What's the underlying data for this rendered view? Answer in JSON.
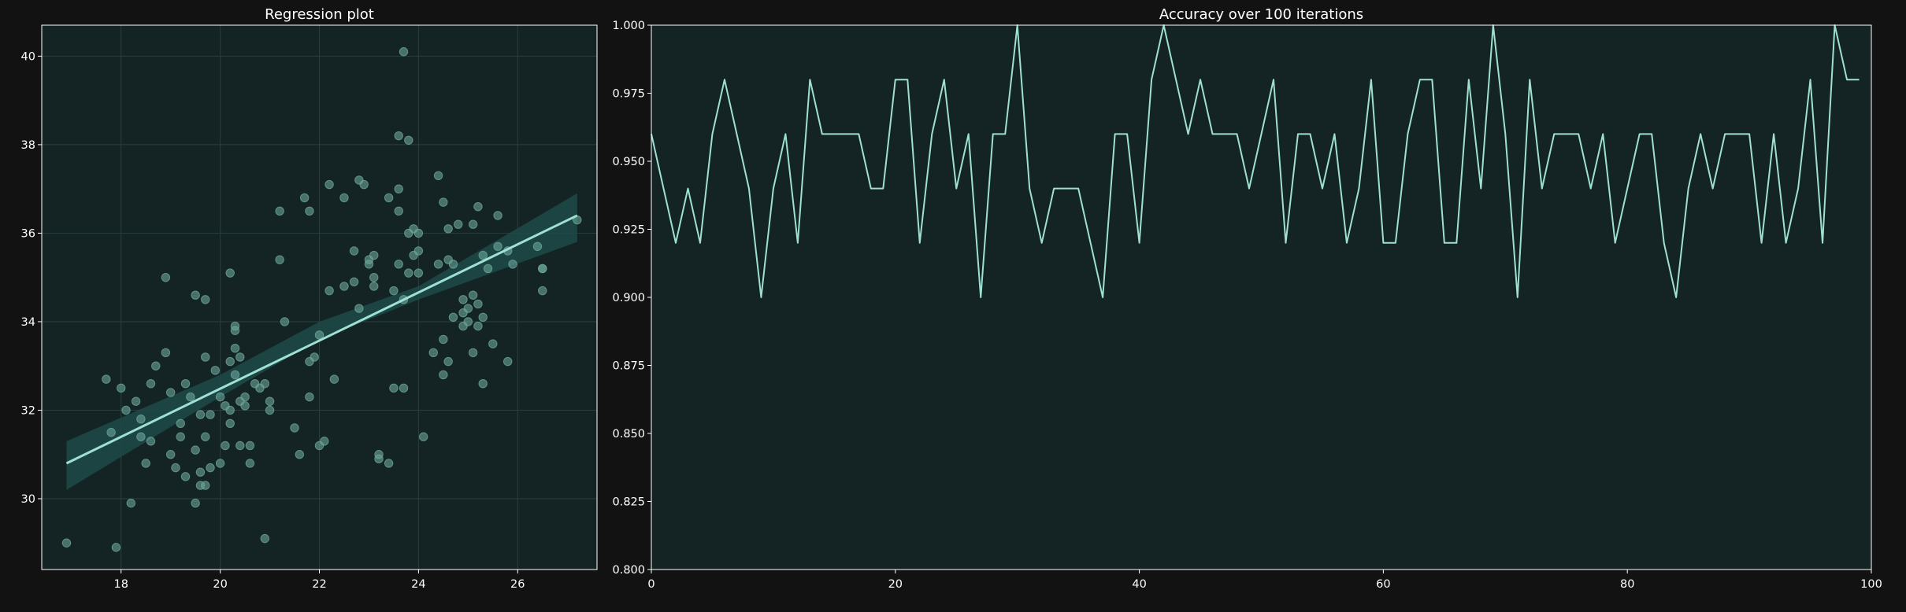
{
  "chart_data": [
    {
      "type": "scatter",
      "title": "Regression plot",
      "xlabel": "",
      "ylabel": "",
      "xlim": [
        16.4,
        27.6
      ],
      "ylim": [
        28.4,
        40.7
      ],
      "xticks": [
        18,
        20,
        22,
        24,
        26
      ],
      "yticks": [
        30,
        32,
        34,
        36,
        38,
        40
      ],
      "grid": true,
      "colors": {
        "background": "#121212",
        "plot_bg": "#142323",
        "point": "#6aa59a",
        "line": "#9fe0d4",
        "band": "#1c4a48",
        "grid": "#27403e",
        "frame": "#ffffff"
      },
      "points": [
        [
          16.9,
          29.0
        ],
        [
          17.7,
          32.7
        ],
        [
          17.8,
          31.5
        ],
        [
          17.9,
          28.9
        ],
        [
          18.0,
          32.5
        ],
        [
          18.1,
          32.0
        ],
        [
          18.2,
          29.9
        ],
        [
          18.3,
          32.2
        ],
        [
          18.4,
          31.4
        ],
        [
          18.4,
          31.8
        ],
        [
          18.5,
          30.8
        ],
        [
          18.6,
          31.3
        ],
        [
          18.6,
          32.6
        ],
        [
          18.7,
          33.0
        ],
        [
          18.9,
          35.0
        ],
        [
          18.9,
          33.3
        ],
        [
          19.0,
          31.0
        ],
        [
          19.0,
          32.4
        ],
        [
          19.1,
          30.7
        ],
        [
          19.2,
          31.4
        ],
        [
          19.2,
          31.7
        ],
        [
          19.3,
          30.5
        ],
        [
          19.3,
          32.6
        ],
        [
          19.4,
          32.3
        ],
        [
          19.5,
          31.1
        ],
        [
          19.5,
          29.9
        ],
        [
          19.5,
          34.6
        ],
        [
          19.6,
          30.3
        ],
        [
          19.6,
          31.9
        ],
        [
          19.6,
          30.6
        ],
        [
          19.7,
          34.5
        ],
        [
          19.7,
          33.2
        ],
        [
          19.7,
          31.4
        ],
        [
          19.7,
          30.3
        ],
        [
          19.8,
          30.7
        ],
        [
          19.8,
          31.9
        ],
        [
          19.9,
          32.9
        ],
        [
          20.0,
          30.8
        ],
        [
          20.0,
          32.3
        ],
        [
          20.1,
          32.1
        ],
        [
          20.1,
          31.2
        ],
        [
          20.2,
          33.1
        ],
        [
          20.2,
          35.1
        ],
        [
          20.2,
          31.7
        ],
        [
          20.2,
          32.0
        ],
        [
          20.3,
          33.4
        ],
        [
          20.3,
          33.8
        ],
        [
          20.3,
          33.9
        ],
        [
          20.3,
          32.8
        ],
        [
          20.4,
          33.2
        ],
        [
          20.4,
          32.2
        ],
        [
          20.4,
          31.2
        ],
        [
          20.5,
          32.3
        ],
        [
          20.5,
          32.1
        ],
        [
          20.6,
          31.2
        ],
        [
          20.6,
          30.8
        ],
        [
          20.7,
          32.6
        ],
        [
          20.8,
          32.5
        ],
        [
          20.9,
          29.1
        ],
        [
          20.9,
          32.6
        ],
        [
          21.0,
          32.2
        ],
        [
          21.0,
          32.0
        ],
        [
          21.2,
          35.4
        ],
        [
          21.2,
          36.5
        ],
        [
          21.3,
          34.0
        ],
        [
          21.5,
          31.6
        ],
        [
          21.6,
          31.0
        ],
        [
          21.7,
          36.8
        ],
        [
          21.8,
          36.5
        ],
        [
          21.8,
          33.1
        ],
        [
          21.8,
          32.3
        ],
        [
          21.9,
          33.2
        ],
        [
          22.0,
          31.2
        ],
        [
          22.0,
          33.7
        ],
        [
          22.1,
          31.3
        ],
        [
          22.2,
          34.7
        ],
        [
          22.2,
          37.1
        ],
        [
          22.3,
          32.7
        ],
        [
          22.5,
          34.8
        ],
        [
          22.5,
          36.8
        ],
        [
          22.7,
          35.6
        ],
        [
          22.7,
          34.9
        ],
        [
          22.8,
          37.2
        ],
        [
          22.8,
          34.3
        ],
        [
          22.9,
          37.1
        ],
        [
          23.0,
          35.3
        ],
        [
          23.0,
          35.4
        ],
        [
          23.1,
          35.0
        ],
        [
          23.1,
          34.8
        ],
        [
          23.1,
          35.5
        ],
        [
          23.2,
          30.9
        ],
        [
          23.2,
          31.0
        ],
        [
          23.4,
          36.8
        ],
        [
          23.4,
          30.8
        ],
        [
          23.5,
          34.7
        ],
        [
          23.5,
          32.5
        ],
        [
          23.6,
          35.3
        ],
        [
          23.6,
          37.0
        ],
        [
          23.6,
          36.5
        ],
        [
          23.6,
          38.2
        ],
        [
          23.7,
          34.5
        ],
        [
          23.7,
          32.5
        ],
        [
          23.7,
          40.1
        ],
        [
          23.8,
          38.1
        ],
        [
          23.8,
          35.1
        ],
        [
          23.8,
          36.0
        ],
        [
          23.9,
          36.1
        ],
        [
          23.9,
          35.5
        ],
        [
          24.0,
          36.0
        ],
        [
          24.0,
          35.1
        ],
        [
          24.0,
          35.6
        ],
        [
          24.1,
          31.4
        ],
        [
          24.3,
          33.3
        ],
        [
          24.4,
          37.3
        ],
        [
          24.4,
          35.3
        ],
        [
          24.5,
          36.7
        ],
        [
          24.5,
          33.6
        ],
        [
          24.5,
          32.8
        ],
        [
          24.6,
          33.1
        ],
        [
          24.6,
          36.1
        ],
        [
          24.6,
          35.4
        ],
        [
          24.7,
          35.3
        ],
        [
          24.7,
          34.1
        ],
        [
          24.8,
          36.2
        ],
        [
          24.9,
          34.2
        ],
        [
          24.9,
          33.9
        ],
        [
          24.9,
          34.5
        ],
        [
          25.0,
          34.3
        ],
        [
          25.0,
          34.0
        ],
        [
          25.1,
          36.2
        ],
        [
          25.1,
          33.3
        ],
        [
          25.1,
          34.6
        ],
        [
          25.2,
          33.9
        ],
        [
          25.2,
          34.4
        ],
        [
          25.2,
          36.6
        ],
        [
          25.3,
          32.6
        ],
        [
          25.3,
          35.5
        ],
        [
          25.3,
          34.1
        ],
        [
          25.4,
          35.2
        ],
        [
          25.5,
          33.5
        ],
        [
          25.6,
          36.4
        ],
        [
          25.6,
          35.7
        ],
        [
          25.8,
          35.6
        ],
        [
          25.8,
          33.1
        ],
        [
          25.9,
          35.3
        ],
        [
          26.4,
          35.7
        ],
        [
          26.5,
          35.2
        ],
        [
          26.5,
          35.2
        ],
        [
          26.5,
          34.7
        ],
        [
          27.2,
          36.3
        ]
      ],
      "regression": {
        "x0": 16.9,
        "y0": 30.8,
        "x1": 27.2,
        "y1": 36.4
      },
      "confidence_band": [
        {
          "x": 16.9,
          "lo": 30.2,
          "hi": 31.3
        },
        {
          "x": 20.0,
          "lo": 32.3,
          "hi": 32.8
        },
        {
          "x": 22.0,
          "lo": 33.6,
          "hi": 34.0
        },
        {
          "x": 24.0,
          "lo": 34.5,
          "hi": 34.8
        },
        {
          "x": 27.2,
          "lo": 35.8,
          "hi": 36.9
        }
      ]
    },
    {
      "type": "line",
      "title": "Accuracy over 100 iterations",
      "xlabel": "",
      "ylabel": "",
      "xlim": [
        0,
        100
      ],
      "ylim": [
        0.8,
        1.0
      ],
      "xticks": [
        0,
        20,
        40,
        60,
        80,
        100
      ],
      "yticks": [
        "0.800",
        "0.825",
        "0.850",
        "0.875",
        "0.900",
        "0.925",
        "0.950",
        "0.975",
        "1.000"
      ],
      "grid": false,
      "colors": {
        "plot_bg": "#142323",
        "line": "#9fe0d4",
        "frame": "#ffffff"
      },
      "x": [
        0,
        1,
        2,
        3,
        4,
        5,
        6,
        7,
        8,
        9,
        10,
        11,
        12,
        13,
        14,
        15,
        16,
        17,
        18,
        19,
        20,
        21,
        22,
        23,
        24,
        25,
        26,
        27,
        28,
        29,
        30,
        31,
        32,
        33,
        34,
        35,
        36,
        37,
        38,
        39,
        40,
        41,
        42,
        43,
        44,
        45,
        46,
        47,
        48,
        49,
        50,
        51,
        52,
        53,
        54,
        55,
        56,
        57,
        58,
        59,
        60,
        61,
        62,
        63,
        64,
        65,
        66,
        67,
        68,
        69,
        70,
        71,
        72,
        73,
        74,
        75,
        76,
        77,
        78,
        79,
        80,
        81,
        82,
        83,
        84,
        85,
        86,
        87,
        88,
        89,
        90,
        91,
        92,
        93,
        94,
        95,
        96,
        97,
        98,
        99
      ],
      "values": [
        0.96,
        0.94,
        0.92,
        0.94,
        0.92,
        0.96,
        0.98,
        0.96,
        0.94,
        0.9,
        0.94,
        0.96,
        0.92,
        0.98,
        0.96,
        0.96,
        0.96,
        0.96,
        0.94,
        0.94,
        0.98,
        0.98,
        0.92,
        0.96,
        0.98,
        0.94,
        0.96,
        0.9,
        0.96,
        0.96,
        1.0,
        0.94,
        0.92,
        0.94,
        0.94,
        0.94,
        0.92,
        0.9,
        0.96,
        0.96,
        0.92,
        0.98,
        1.0,
        0.98,
        0.96,
        0.98,
        0.96,
        0.96,
        0.96,
        0.94,
        0.96,
        0.98,
        0.92,
        0.96,
        0.96,
        0.94,
        0.96,
        0.92,
        0.94,
        0.98,
        0.92,
        0.92,
        0.96,
        0.98,
        0.98,
        0.92,
        0.92,
        0.98,
        0.94,
        1.0,
        0.96,
        0.9,
        0.98,
        0.94,
        0.96,
        0.96,
        0.96,
        0.94,
        0.96,
        0.92,
        0.94,
        0.96,
        0.96,
        0.92,
        0.9,
        0.94,
        0.96,
        0.94,
        0.96,
        0.96,
        0.96,
        0.92,
        0.96,
        0.92,
        0.94,
        0.98,
        0.92,
        1.0,
        0.98,
        0.98
      ]
    }
  ]
}
